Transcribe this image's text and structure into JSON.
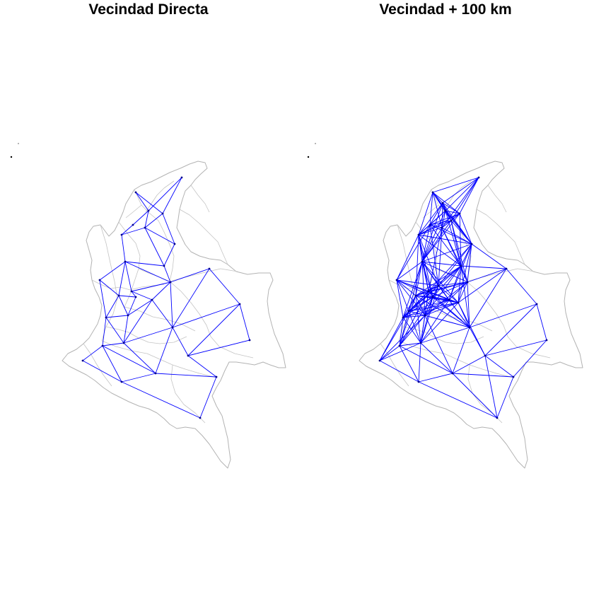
{
  "panels": [
    {
      "title": "Vecindad Directa"
    },
    {
      "title": "Vecindad + 100 km"
    }
  ],
  "colors": {
    "edge": "#0000ff",
    "node": "#00008b",
    "boundary": "#b3b3b3",
    "background": "#ffffff"
  },
  "legend": "none",
  "axes": "none"
}
